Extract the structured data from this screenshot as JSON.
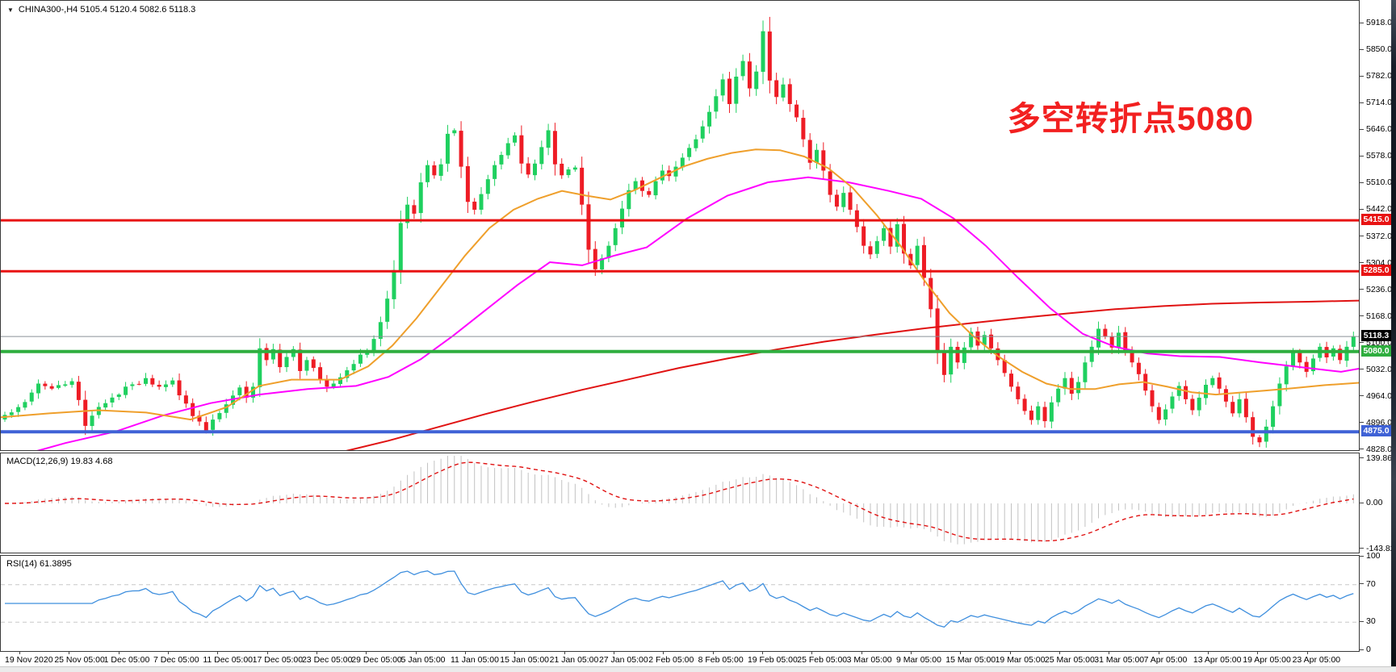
{
  "header": {
    "symbol_ohlc": "CHINA300-,H4  5105.4 5120.4 5082.6 5118.3",
    "dropdown_icon": "▼"
  },
  "annotation": {
    "text": "多空转折点5080",
    "color": "#f22020"
  },
  "colors": {
    "up": "#1fd05f",
    "down": "#ee1c25",
    "ma_orange": "#ef9f2b",
    "ma_magenta": "#ff00ff",
    "ma_red": "#e01212",
    "level_red": "#e81313",
    "level_green": "#2fae3f",
    "level_blue": "#3f62d6",
    "price_line_gray": "#8a9096",
    "macd_hist": "#c2c2c2",
    "macd_signal": "#e01212",
    "rsi_line": "#3f8fde",
    "rsi_dash": "#c8c8c8",
    "badge_black": "#000000"
  },
  "chart_data": {
    "type": "candlestick",
    "symbol": "CHINA300-",
    "timeframe": "H4",
    "current_bar": {
      "open": 5105.4,
      "high": 5120.4,
      "low": 5082.6,
      "close": 5118.3
    },
    "y_axis": {
      "ticks": [
        5918.0,
        5850.0,
        5782.0,
        5714.0,
        5646.0,
        5578.0,
        5510.0,
        5442.0,
        5372.0,
        5304.0,
        5236.0,
        5168.0,
        5100.0,
        5032.0,
        4964.0,
        4896.0,
        4828.0
      ]
    },
    "x_axis": {
      "labels": [
        "19 Nov 2020",
        "25 Nov 05:00",
        "1 Dec 05:00",
        "7 Dec 05:00",
        "11 Dec 05:00",
        "17 Dec 05:00",
        "23 Dec 05:00",
        "29 Dec 05:00",
        "5 Jan 05:00",
        "11 Jan 05:00",
        "15 Jan 05:00",
        "21 Jan 05:00",
        "27 Jan 05:00",
        "2 Feb 05:00",
        "8 Feb 05:00",
        "19 Feb 05:00",
        "25 Feb 05:00",
        "3 Mar 05:00",
        "9 Mar 05:00",
        "15 Mar 05:00",
        "19 Mar 05:00",
        "25 Mar 05:00",
        "31 Mar 05:00",
        "7 Apr 05:00",
        "13 Apr 05:00",
        "19 Apr 05:00",
        "23 Apr 05:00"
      ]
    },
    "horizontal_levels": [
      {
        "price": 5415.0,
        "label": "5415.0",
        "style": "red"
      },
      {
        "price": 5285.0,
        "label": "5285.0",
        "style": "red"
      },
      {
        "price": 5118.3,
        "label": "5118.3",
        "style": "current"
      },
      {
        "price": 5080.0,
        "label": "5080.0",
        "style": "green"
      },
      {
        "price": 4875.0,
        "label": "4875.0",
        "style": "blue"
      }
    ],
    "candles": {
      "count": 202,
      "close_anchors": [
        [
          0,
          4918
        ],
        [
          2,
          4938
        ],
        [
          4,
          4975
        ],
        [
          5,
          4998
        ],
        [
          7,
          4985
        ],
        [
          9,
          4996
        ],
        [
          10,
          5004
        ],
        [
          11,
          4956
        ],
        [
          12,
          4890
        ],
        [
          13,
          4916
        ],
        [
          15,
          4948
        ],
        [
          17,
          4970
        ],
        [
          19,
          4996
        ],
        [
          21,
          5012
        ],
        [
          23,
          4990
        ],
        [
          25,
          5006
        ],
        [
          26,
          4968
        ],
        [
          28,
          4915
        ],
        [
          30,
          4878
        ],
        [
          31,
          4906
        ],
        [
          33,
          4945
        ],
        [
          35,
          4988
        ],
        [
          36,
          4962
        ],
        [
          37,
          4990
        ],
        [
          38,
          5088
        ],
        [
          39,
          5058
        ],
        [
          40,
          5086
        ],
        [
          41,
          5040
        ],
        [
          42,
          5066
        ],
        [
          43,
          5086
        ],
        [
          44,
          5030
        ],
        [
          45,
          5058
        ],
        [
          46,
          5038
        ],
        [
          47,
          5008
        ],
        [
          48,
          4990
        ],
        [
          49,
          4998
        ],
        [
          50,
          5014
        ],
        [
          51,
          5032
        ],
        [
          52,
          5048
        ],
        [
          53,
          5072
        ],
        [
          54,
          5082
        ],
        [
          55,
          5112
        ],
        [
          56,
          5155
        ],
        [
          57,
          5215
        ],
        [
          58,
          5288
        ],
        [
          59,
          5408
        ],
        [
          60,
          5455
        ],
        [
          61,
          5432
        ],
        [
          62,
          5512
        ],
        [
          63,
          5556
        ],
        [
          64,
          5530
        ],
        [
          65,
          5558
        ],
        [
          66,
          5636
        ],
        [
          67,
          5645
        ],
        [
          68,
          5552
        ],
        [
          69,
          5462
        ],
        [
          70,
          5442
        ],
        [
          71,
          5482
        ],
        [
          72,
          5520
        ],
        [
          73,
          5556
        ],
        [
          74,
          5582
        ],
        [
          75,
          5612
        ],
        [
          76,
          5632
        ],
        [
          77,
          5560
        ],
        [
          78,
          5532
        ],
        [
          79,
          5560
        ],
        [
          80,
          5602
        ],
        [
          81,
          5645
        ],
        [
          82,
          5558
        ],
        [
          83,
          5530
        ],
        [
          84,
          5545
        ],
        [
          85,
          5550
        ],
        [
          86,
          5455
        ],
        [
          87,
          5340
        ],
        [
          88,
          5290
        ],
        [
          89,
          5318
        ],
        [
          90,
          5350
        ],
        [
          91,
          5395
        ],
        [
          92,
          5445
        ],
        [
          93,
          5492
        ],
        [
          94,
          5515
        ],
        [
          95,
          5490
        ],
        [
          96,
          5480
        ],
        [
          97,
          5515
        ],
        [
          98,
          5542
        ],
        [
          99,
          5528
        ],
        [
          100,
          5552
        ],
        [
          101,
          5575
        ],
        [
          102,
          5600
        ],
        [
          103,
          5622
        ],
        [
          104,
          5655
        ],
        [
          105,
          5692
        ],
        [
          106,
          5732
        ],
        [
          107,
          5775
        ],
        [
          108,
          5712
        ],
        [
          109,
          5782
        ],
        [
          110,
          5822
        ],
        [
          111,
          5752
        ],
        [
          112,
          5795
        ],
        [
          113,
          5898
        ],
        [
          114,
          5772
        ],
        [
          115,
          5730
        ],
        [
          116,
          5762
        ],
        [
          117,
          5712
        ],
        [
          118,
          5678
        ],
        [
          119,
          5622
        ],
        [
          120,
          5562
        ],
        [
          121,
          5595
        ],
        [
          122,
          5542
        ],
        [
          123,
          5480
        ],
        [
          124,
          5450
        ],
        [
          125,
          5485
        ],
        [
          126,
          5442
        ],
        [
          127,
          5398
        ],
        [
          128,
          5350
        ],
        [
          129,
          5328
        ],
        [
          130,
          5362
        ],
        [
          131,
          5395
        ],
        [
          132,
          5348
        ],
        [
          133,
          5405
        ],
        [
          134,
          5330
        ],
        [
          135,
          5300
        ],
        [
          136,
          5350
        ],
        [
          137,
          5268
        ],
        [
          138,
          5188
        ],
        [
          139,
          5078
        ],
        [
          140,
          5020
        ],
        [
          141,
          5092
        ],
        [
          142,
          5052
        ],
        [
          143,
          5090
        ],
        [
          144,
          5130
        ],
        [
          145,
          5095
        ],
        [
          146,
          5122
        ],
        [
          147,
          5088
        ],
        [
          148,
          5058
        ],
        [
          149,
          5025
        ],
        [
          150,
          4990
        ],
        [
          151,
          4958
        ],
        [
          152,
          4928
        ],
        [
          153,
          4905
        ],
        [
          154,
          4940
        ],
        [
          155,
          4902
        ],
        [
          156,
          4950
        ],
        [
          157,
          4985
        ],
        [
          158,
          5012
        ],
        [
          159,
          4972
        ],
        [
          160,
          5002
        ],
        [
          161,
          5052
        ],
        [
          162,
          5092
        ],
        [
          163,
          5138
        ],
        [
          164,
          5118
        ],
        [
          165,
          5090
        ],
        [
          166,
          5128
        ],
        [
          167,
          5082
        ],
        [
          168,
          5052
        ],
        [
          169,
          5022
        ],
        [
          170,
          4980
        ],
        [
          171,
          4940
        ],
        [
          172,
          4905
        ],
        [
          173,
          4932
        ],
        [
          174,
          4965
        ],
        [
          175,
          4992
        ],
        [
          176,
          4958
        ],
        [
          177,
          4930
        ],
        [
          178,
          4962
        ],
        [
          179,
          4995
        ],
        [
          180,
          5012
        ],
        [
          181,
          4985
        ],
        [
          182,
          4952
        ],
        [
          183,
          4922
        ],
        [
          184,
          4958
        ],
        [
          185,
          4912
        ],
        [
          186,
          4862
        ],
        [
          187,
          4848
        ],
        [
          188,
          4888
        ],
        [
          189,
          4940
        ],
        [
          190,
          4998
        ],
        [
          191,
          5042
        ],
        [
          192,
          5078
        ],
        [
          193,
          5052
        ],
        [
          194,
          5028
        ],
        [
          195,
          5062
        ],
        [
          196,
          5092
        ],
        [
          197,
          5065
        ],
        [
          198,
          5088
        ],
        [
          199,
          5058
        ],
        [
          200,
          5092
        ],
        [
          201,
          5118.3
        ]
      ]
    },
    "moving_averages": {
      "orange": [
        [
          0,
          4912
        ],
        [
          60,
          4922
        ],
        [
          120,
          4930
        ],
        [
          180,
          4924
        ],
        [
          235,
          4906
        ],
        [
          280,
          4938
        ],
        [
          320,
          4992
        ],
        [
          360,
          5008
        ],
        [
          420,
          5008
        ],
        [
          455,
          5042
        ],
        [
          485,
          5095
        ],
        [
          515,
          5165
        ],
        [
          545,
          5245
        ],
        [
          575,
          5325
        ],
        [
          605,
          5395
        ],
        [
          635,
          5442
        ],
        [
          665,
          5470
        ],
        [
          695,
          5490
        ],
        [
          725,
          5478
        ],
        [
          755,
          5468
        ],
        [
          785,
          5492
        ],
        [
          815,
          5522
        ],
        [
          845,
          5552
        ],
        [
          875,
          5572
        ],
        [
          905,
          5587
        ],
        [
          935,
          5596
        ],
        [
          965,
          5594
        ],
        [
          995,
          5578
        ],
        [
          1025,
          5548
        ],
        [
          1055,
          5498
        ],
        [
          1085,
          5428
        ],
        [
          1115,
          5348
        ],
        [
          1145,
          5258
        ],
        [
          1175,
          5178
        ],
        [
          1205,
          5118
        ],
        [
          1235,
          5068
        ],
        [
          1265,
          5028
        ],
        [
          1295,
          4998
        ],
        [
          1325,
          4984
        ],
        [
          1355,
          4984
        ],
        [
          1385,
          4996
        ],
        [
          1415,
          5002
        ],
        [
          1445,
          4990
        ],
        [
          1475,
          4976
        ],
        [
          1505,
          4970
        ],
        [
          1535,
          4975
        ],
        [
          1565,
          4980
        ],
        [
          1600,
          4986
        ],
        [
          1640,
          4994
        ],
        [
          1682,
          5000
        ]
      ],
      "magenta": [
        [
          38,
          4822
        ],
        [
          80,
          4846
        ],
        [
          143,
          4876
        ],
        [
          200,
          4916
        ],
        [
          260,
          4948
        ],
        [
          320,
          4970
        ],
        [
          380,
          4984
        ],
        [
          440,
          4992
        ],
        [
          480,
          5015
        ],
        [
          520,
          5060
        ],
        [
          560,
          5120
        ],
        [
          600,
          5185
        ],
        [
          640,
          5250
        ],
        [
          680,
          5308
        ],
        [
          720,
          5300
        ],
        [
          760,
          5325
        ],
        [
          800,
          5346
        ],
        [
          850,
          5420
        ],
        [
          900,
          5478
        ],
        [
          950,
          5512
        ],
        [
          1000,
          5525
        ],
        [
          1050,
          5512
        ],
        [
          1100,
          5490
        ],
        [
          1140,
          5470
        ],
        [
          1180,
          5420
        ],
        [
          1220,
          5350
        ],
        [
          1260,
          5268
        ],
        [
          1300,
          5190
        ],
        [
          1340,
          5125
        ],
        [
          1380,
          5092
        ],
        [
          1420,
          5075
        ],
        [
          1460,
          5068
        ],
        [
          1510,
          5066
        ],
        [
          1560,
          5052
        ],
        [
          1610,
          5040
        ],
        [
          1660,
          5028
        ],
        [
          1682,
          5036
        ]
      ],
      "red": [
        [
          428,
          4826
        ],
        [
          480,
          4852
        ],
        [
          540,
          4886
        ],
        [
          600,
          4920
        ],
        [
          660,
          4952
        ],
        [
          720,
          4982
        ],
        [
          780,
          5010
        ],
        [
          840,
          5038
        ],
        [
          900,
          5062
        ],
        [
          960,
          5085
        ],
        [
          1020,
          5105
        ],
        [
          1080,
          5122
        ],
        [
          1140,
          5138
        ],
        [
          1200,
          5152
        ],
        [
          1260,
          5165
        ],
        [
          1320,
          5177
        ],
        [
          1380,
          5188
        ],
        [
          1440,
          5196
        ],
        [
          1500,
          5202
        ],
        [
          1560,
          5205
        ],
        [
          1620,
          5207
        ],
        [
          1682,
          5210
        ]
      ]
    },
    "macd": {
      "label": "MACD(12,26,9) 19.83 4.68",
      "fast": 12,
      "slow": 26,
      "signal_period": 9,
      "value": 19.83,
      "signal_value": 4.68,
      "scale_ticks": [
        139.86,
        0.0,
        -143.82
      ]
    },
    "rsi": {
      "label": "RSI(14) 61.3895",
      "period": 14,
      "value": 61.3895,
      "scale_ticks": [
        100,
        70,
        30,
        0
      ],
      "dashed_levels": [
        70,
        30
      ]
    }
  }
}
